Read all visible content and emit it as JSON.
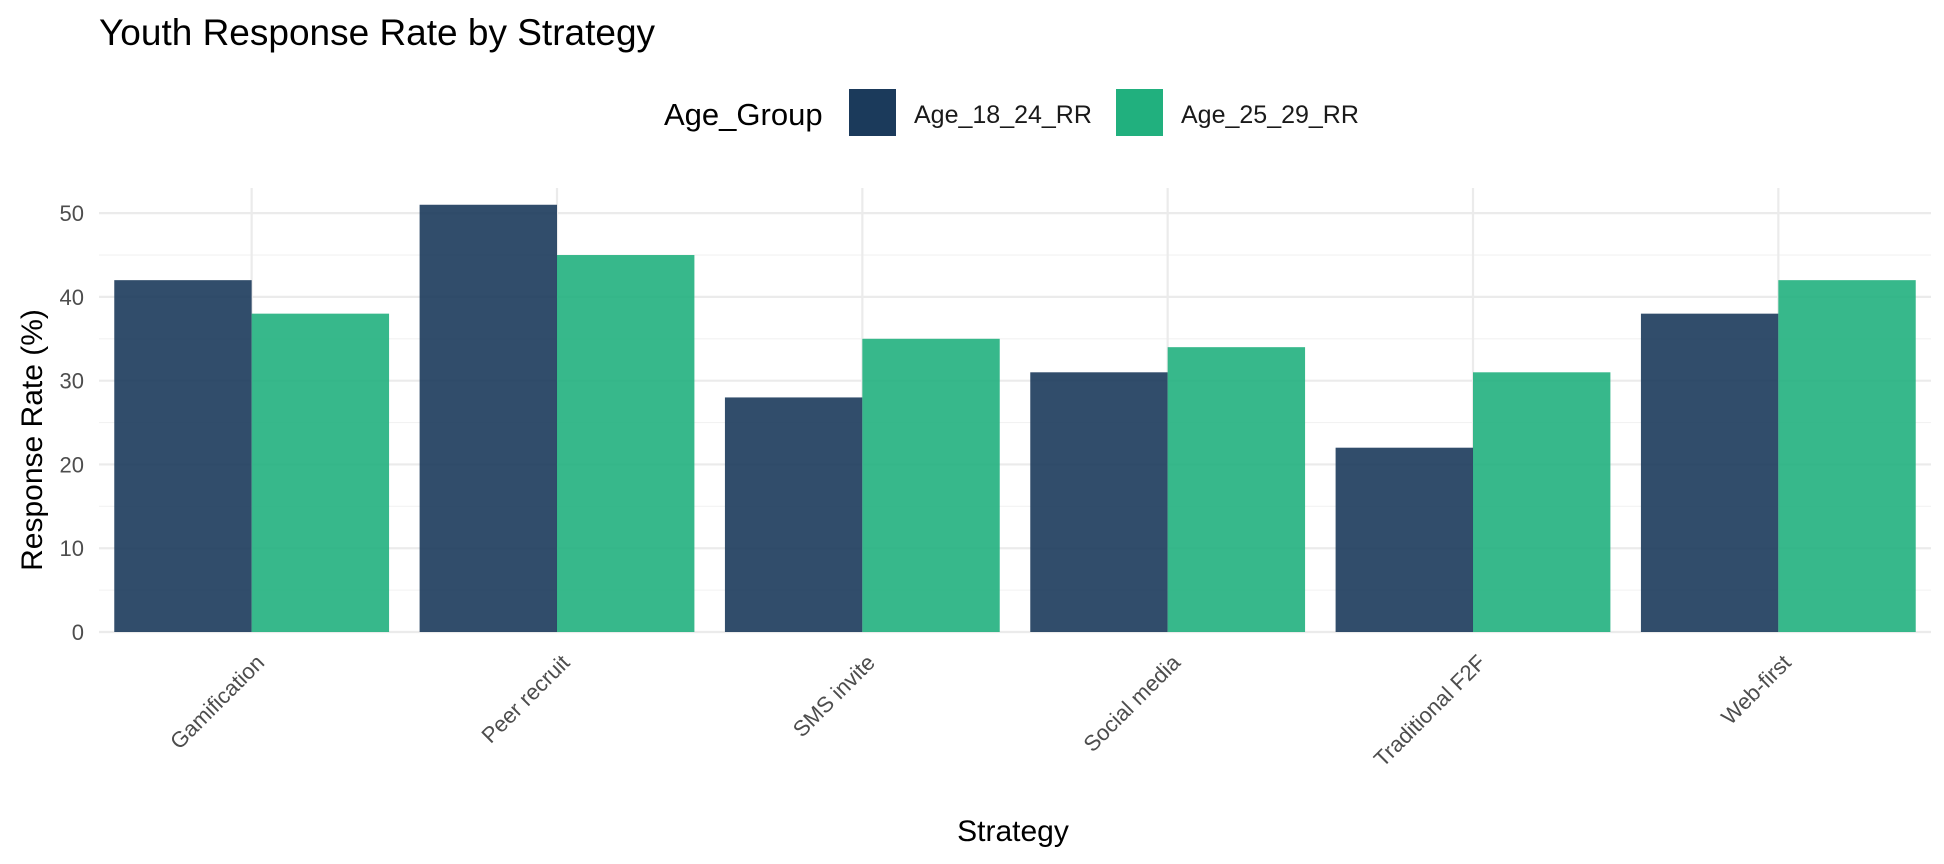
{
  "chart_data": {
    "type": "bar",
    "title": "Youth Response Rate by Strategy",
    "xlabel": "Strategy",
    "ylabel": "Response Rate (%)",
    "ylim": [
      0,
      53
    ],
    "yticks": [
      0,
      10,
      20,
      30,
      40,
      50
    ],
    "grid": true,
    "legend": {
      "title": "Age_Group",
      "position": "top"
    },
    "categories": [
      "Gamification",
      "Peer recruit",
      "SMS invite",
      "Social media",
      "Traditional F2F",
      "Web-first"
    ],
    "series": [
      {
        "name": "Age_18_24_RR",
        "color": "#1b3a5b",
        "values": [
          42,
          51,
          28,
          31,
          22,
          38
        ]
      },
      {
        "name": "Age_25_29_RR",
        "color": "#21b07e",
        "values": [
          38,
          45,
          35,
          34,
          31,
          42
        ]
      }
    ]
  }
}
